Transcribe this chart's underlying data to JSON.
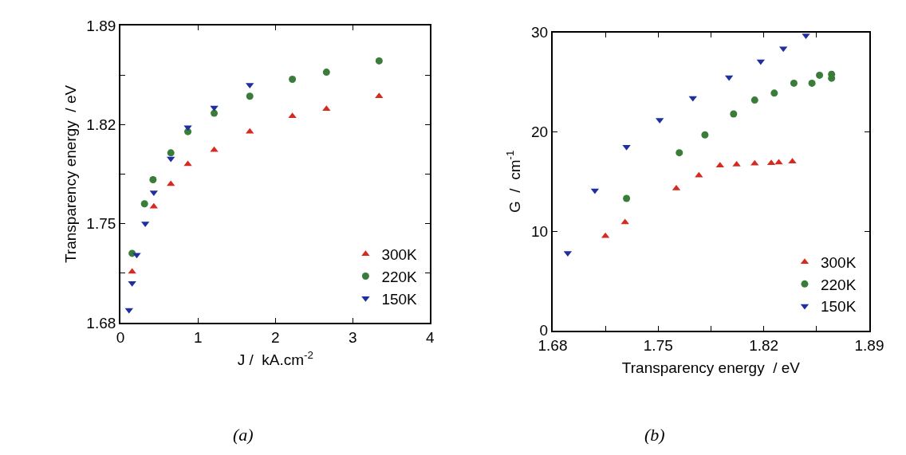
{
  "chart_data": [
    {
      "type": "scatter",
      "xlabel": "J /  kA.cm$^{-2}$",
      "ylabel": "Transparency energy  / eV",
      "annotations": [
        "(a)"
      ],
      "xlim": [
        0,
        4
      ],
      "xticks": [
        0,
        1,
        2,
        3,
        4
      ],
      "ylim": [
        1.68,
        1.89
      ],
      "yticks": [
        1.68,
        {
          "value": 1.715,
          "label": null
        },
        1.75,
        {
          "value": 1.785,
          "label": null
        },
        1.82,
        {
          "value": 1.855,
          "label": null
        },
        1.89
      ],
      "legend": "bottom right",
      "series": [
        {
          "name": "300K",
          "color": "#d42a20",
          "marker": "triangle",
          "x": [
            0.15,
            0.43,
            0.65,
            0.87,
            1.21,
            1.67,
            2.22,
            2.66,
            3.34
          ],
          "values": [
            1.716,
            1.762,
            1.778,
            1.792,
            1.802,
            1.815,
            1.826,
            1.831,
            1.84
          ]
        },
        {
          "name": "220K",
          "color": "#3a7d3a",
          "marker": "circle",
          "x": [
            0.15,
            0.31,
            0.42,
            0.65,
            0.87,
            1.21,
            1.67,
            2.22,
            2.66,
            3.34
          ],
          "values": [
            1.729,
            1.764,
            1.781,
            1.8,
            1.815,
            1.828,
            1.84,
            1.852,
            1.857,
            1.865
          ]
        },
        {
          "name": "150K",
          "color": "#1f2fa0",
          "marker": "triangle-down",
          "x": [
            0.11,
            0.15,
            0.21,
            0.32,
            0.43,
            0.65,
            0.87,
            1.21,
            1.67
          ],
          "values": [
            1.689,
            1.708,
            1.728,
            1.75,
            1.772,
            1.796,
            1.818,
            1.832,
            1.848
          ]
        }
      ]
    },
    {
      "type": "scatter",
      "xlabel": "Transparency energy  / eV",
      "ylabel": "G  /  cm$^{-1}$",
      "annotations": [
        "(b)"
      ],
      "xlim": [
        1.68,
        1.89
      ],
      "xticks": [
        1.68,
        {
          "value": 1.715,
          "label": null
        },
        1.75,
        {
          "value": 1.785,
          "label": null
        },
        1.82,
        {
          "value": 1.855,
          "label": null
        },
        1.89
      ],
      "ylim": [
        0,
        30
      ],
      "yticks": [
        0,
        10,
        20,
        30
      ],
      "legend": "bottom right",
      "series": [
        {
          "name": "300K",
          "color": "#d42a20",
          "marker": "triangle",
          "x": [
            1.715,
            1.728,
            1.762,
            1.777,
            1.791,
            1.802,
            1.814,
            1.825,
            1.83,
            1.839
          ],
          "values": [
            9.5,
            10.9,
            14.3,
            15.6,
            16.6,
            16.7,
            16.8,
            16.85,
            16.9,
            17.0
          ]
        },
        {
          "name": "220K",
          "color": "#3a7d3a",
          "marker": "circle",
          "x": [
            1.729,
            1.764,
            1.781,
            1.8,
            1.814,
            1.827,
            1.84,
            1.852,
            1.857,
            1.865,
            1.865
          ],
          "values": [
            13.3,
            17.9,
            19.7,
            21.8,
            23.2,
            23.9,
            24.9,
            24.9,
            25.7,
            25.8,
            25.4
          ]
        },
        {
          "name": "150K",
          "color": "#1f2fa0",
          "marker": "triangle-down",
          "x": [
            1.69,
            1.708,
            1.729,
            1.751,
            1.773,
            1.797,
            1.818,
            1.833,
            1.848
          ],
          "values": [
            7.8,
            14.1,
            18.5,
            21.2,
            23.4,
            25.5,
            27.1,
            28.4,
            29.7
          ]
        }
      ]
    }
  ]
}
